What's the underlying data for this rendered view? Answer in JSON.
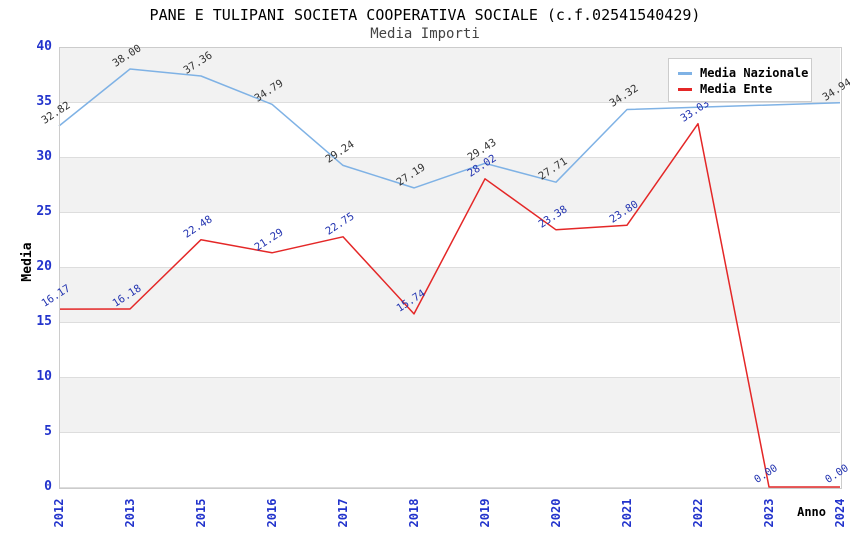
{
  "title": "PANE E TULIPANI SOCIETA COOPERATIVA SOCIALE (c.f.02541540429)",
  "subtitle": "Media Importi",
  "chart_data": {
    "type": "line",
    "x_categories": [
      "2012",
      "2013",
      "2015",
      "2016",
      "2017",
      "2018",
      "2019",
      "2020",
      "2021",
      "2022",
      "2023",
      "2024"
    ],
    "xlabel": "Anno",
    "ylabel": "Media",
    "ylim": [
      0,
      40
    ],
    "y_ticks": [
      0,
      5,
      10,
      15,
      20,
      25,
      30,
      35,
      40
    ],
    "grid": "horizontal gridlines every 5 units with alternating light-gray bands",
    "legend_position": "top-right",
    "series": [
      {
        "name": "Media Nazionale",
        "color": "#7FB2E5",
        "label_color": "#333333",
        "values": [
          32.82,
          38.0,
          37.36,
          34.79,
          29.24,
          27.19,
          29.43,
          27.71,
          34.32,
          null,
          null,
          34.94
        ],
        "labels": [
          "32.82",
          "38.00",
          "37.36",
          "34.79",
          "29.24",
          "27.19",
          "29.43",
          "27.71",
          "34.32",
          null,
          null,
          "34.94"
        ]
      },
      {
        "name": "Media Ente",
        "color": "#E42727",
        "label_color": "#2233B0",
        "values": [
          16.17,
          16.18,
          22.48,
          21.29,
          22.75,
          15.74,
          28.02,
          23.38,
          23.8,
          33.03,
          0.0,
          0.0
        ],
        "labels": [
          "16.17",
          "16.18",
          "22.48",
          "21.29",
          "22.75",
          "15.74",
          "28.02",
          "23.38",
          "23.80",
          "33.03",
          "0.00",
          "0.00"
        ]
      }
    ]
  },
  "colors": {
    "axis_tick_text": "#2233CC",
    "band_gray": "#F2F2F2",
    "gridline": "#DDDDDD",
    "plot_border": "#CCCCCC",
    "title_text": "#000000",
    "subtitle_text": "#444444"
  }
}
